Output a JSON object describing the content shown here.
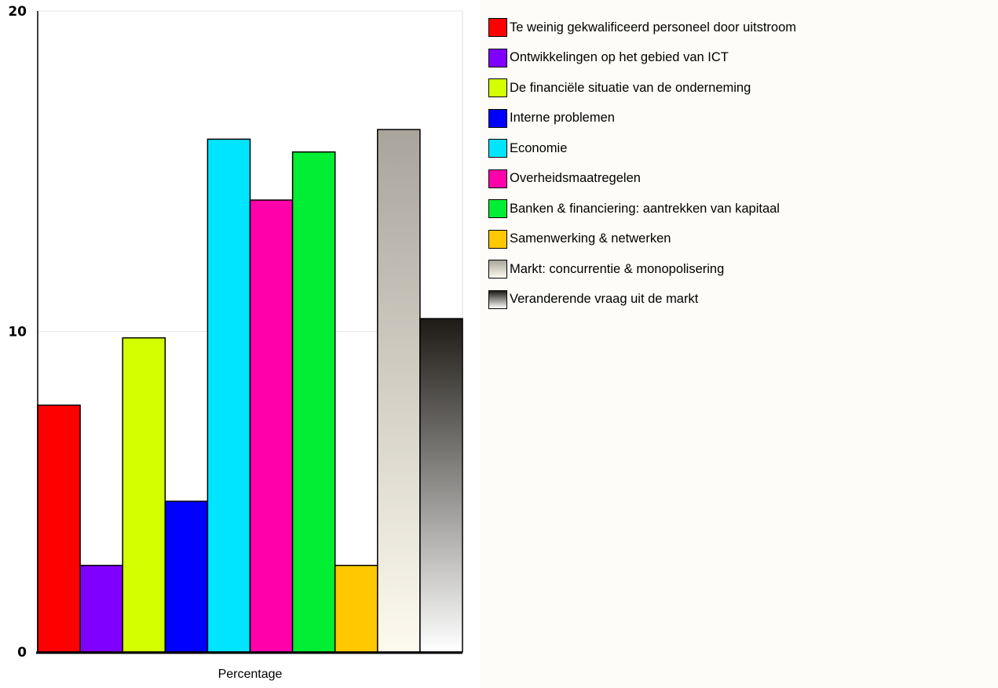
{
  "chart_data": {
    "type": "bar",
    "xlabel": "Percentage",
    "ylabel": "",
    "ylim": [
      0,
      20
    ],
    "yticks": [
      "0",
      "10",
      "20"
    ],
    "grid": true,
    "legend_position": "right",
    "series": [
      {
        "name": "Te weinig gekwalificeerd personeel door uitstroom",
        "value": 7.7,
        "color": "#ff0000"
      },
      {
        "name": "Ontwikkelingen op het gebied van ICT",
        "value": 2.7,
        "color": "#8000ff"
      },
      {
        "name": "De financiële situatie van de onderneming",
        "value": 9.8,
        "color": "#d4ff00"
      },
      {
        "name": "Interne problemen",
        "value": 4.7,
        "color": "#0000ff"
      },
      {
        "name": "Economie",
        "value": 16.0,
        "color": "#00e5ff"
      },
      {
        "name": "Overheidsmaatregelen",
        "value": 14.1,
        "color": "#ff00aa"
      },
      {
        "name": "Banken & financiering: aantrekken van kapitaal",
        "value": 15.6,
        "color": "#00ee33"
      },
      {
        "name": "Samenwerking & netwerken",
        "value": 2.7,
        "color": "#ffc800"
      },
      {
        "name": "Markt: concurrentie & monopolisering",
        "value": 16.3,
        "gradient": [
          "#a9a59c",
          "#fdfaef"
        ]
      },
      {
        "name": "Veranderende vraag uit de markt",
        "value": 10.4,
        "gradient": [
          "#1e1b16",
          "#ffffff"
        ]
      }
    ]
  }
}
